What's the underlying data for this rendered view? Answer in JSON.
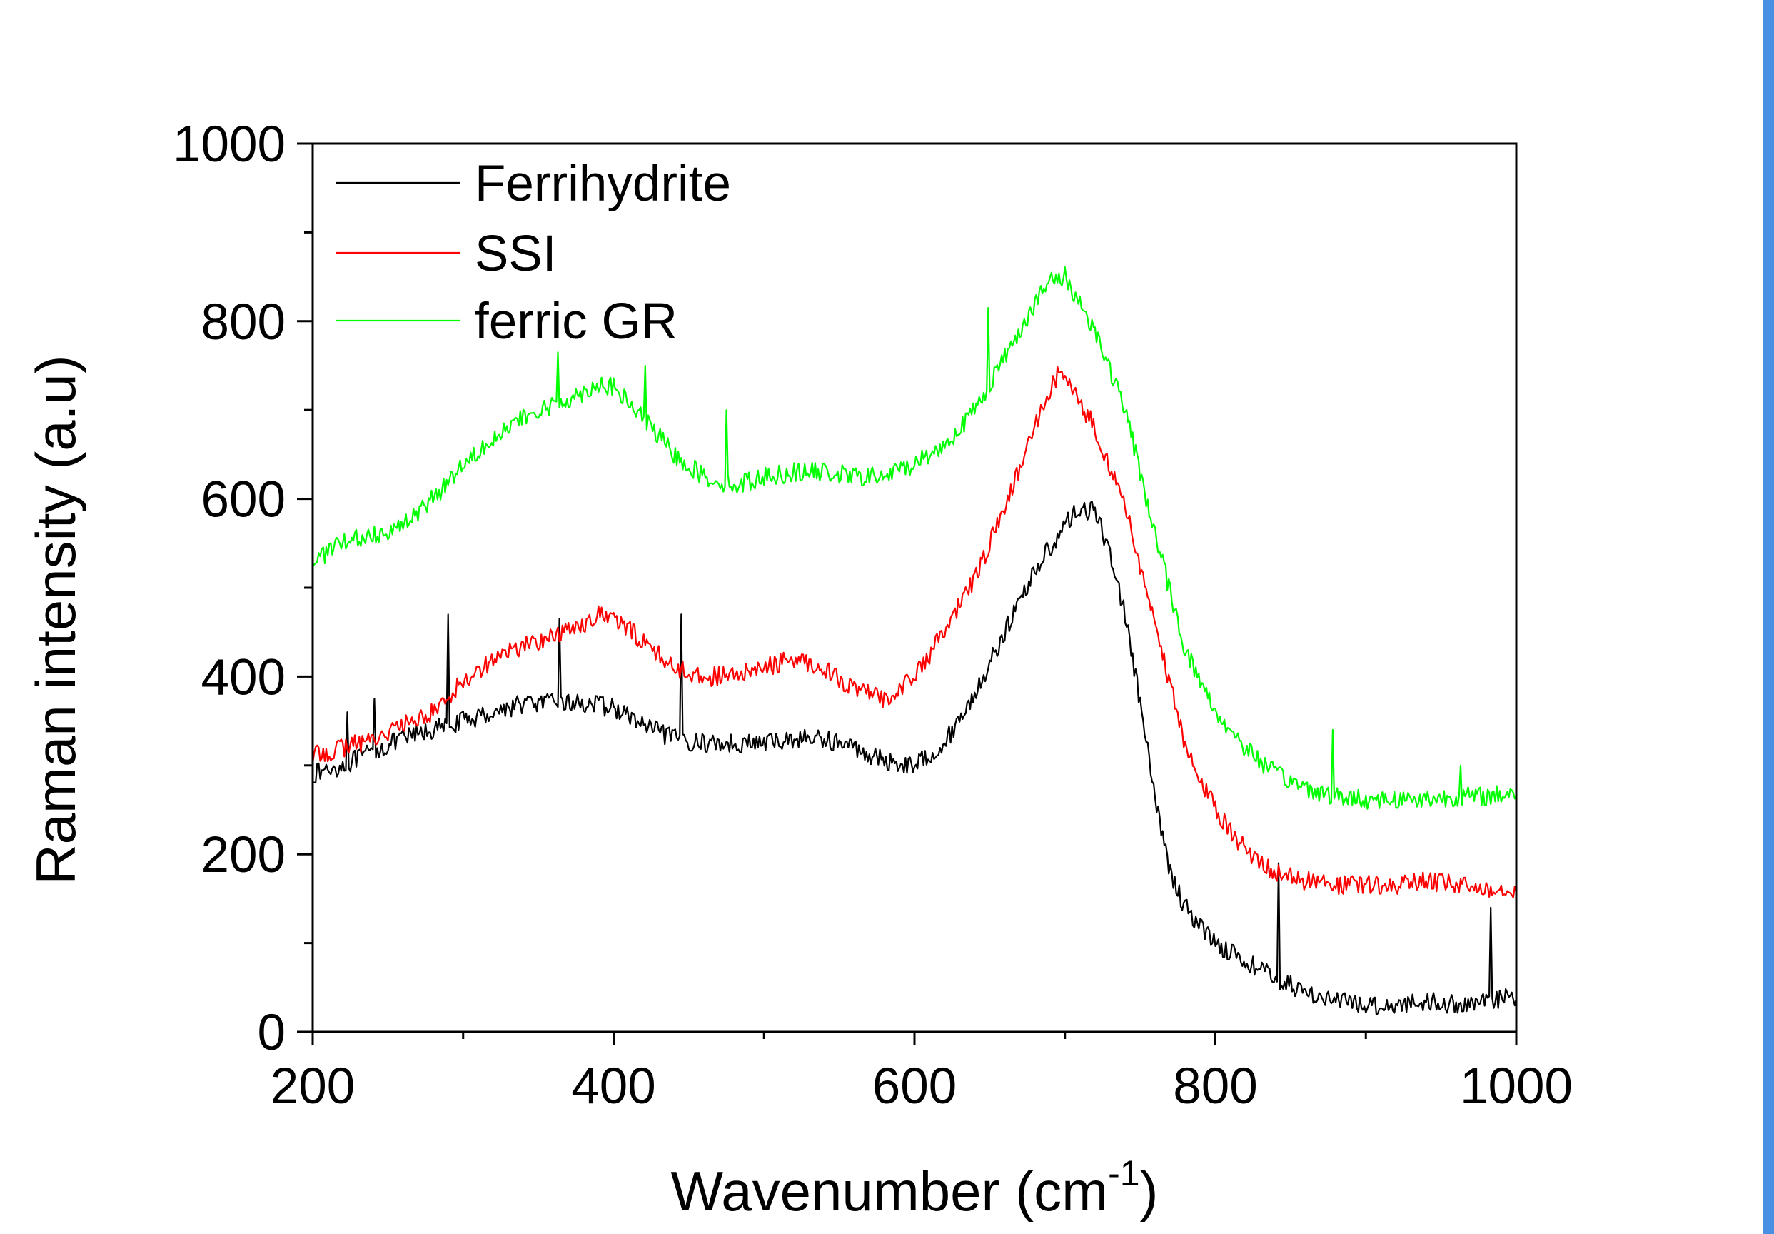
{
  "chart_data": {
    "type": "line",
    "xlabel": "Wavenumber (cm",
    "xlabel_superscript": "-1",
    "xlabel_suffix": ")",
    "ylabel": "Raman intensity (a.u)",
    "xlim": [
      200,
      1000
    ],
    "ylim": [
      0,
      1000
    ],
    "x_ticks": [
      200,
      400,
      600,
      800,
      1000
    ],
    "y_ticks": [
      0,
      200,
      400,
      600,
      800,
      1000
    ],
    "grid": false,
    "legend_position": "top-left",
    "series": [
      {
        "name": "Ferrihydrite",
        "color": "#000000",
        "points": [
          [
            200,
            290
          ],
          [
            220,
            300
          ],
          [
            240,
            315
          ],
          [
            260,
            330
          ],
          [
            280,
            340
          ],
          [
            300,
            350
          ],
          [
            320,
            360
          ],
          [
            340,
            370
          ],
          [
            360,
            370
          ],
          [
            380,
            370
          ],
          [
            400,
            365
          ],
          [
            420,
            345
          ],
          [
            440,
            330
          ],
          [
            460,
            325
          ],
          [
            480,
            325
          ],
          [
            500,
            325
          ],
          [
            520,
            330
          ],
          [
            540,
            330
          ],
          [
            560,
            320
          ],
          [
            580,
            305
          ],
          [
            600,
            300
          ],
          [
            620,
            325
          ],
          [
            640,
            380
          ],
          [
            660,
            450
          ],
          [
            680,
            520
          ],
          [
            700,
            570
          ],
          [
            710,
            590
          ],
          [
            720,
            585
          ],
          [
            730,
            540
          ],
          [
            740,
            470
          ],
          [
            750,
            370
          ],
          [
            760,
            260
          ],
          [
            770,
            180
          ],
          [
            780,
            140
          ],
          [
            800,
            100
          ],
          [
            820,
            80
          ],
          [
            840,
            60
          ],
          [
            860,
            45
          ],
          [
            880,
            35
          ],
          [
            900,
            30
          ],
          [
            920,
            30
          ],
          [
            940,
            35
          ],
          [
            960,
            30
          ],
          [
            980,
            35
          ],
          [
            1000,
            40
          ]
        ],
        "spikes": [
          [
            223,
            360
          ],
          [
            241,
            375
          ],
          [
            290,
            470
          ],
          [
            364,
            465
          ],
          [
            445,
            470
          ],
          [
            842,
            190
          ],
          [
            983,
            140
          ]
        ]
      },
      {
        "name": "SSI",
        "color": "#ff0000",
        "points": [
          [
            200,
            310
          ],
          [
            220,
            320
          ],
          [
            240,
            330
          ],
          [
            260,
            345
          ],
          [
            280,
            360
          ],
          [
            300,
            395
          ],
          [
            320,
            420
          ],
          [
            340,
            435
          ],
          [
            360,
            445
          ],
          [
            380,
            460
          ],
          [
            390,
            470
          ],
          [
            400,
            465
          ],
          [
            420,
            440
          ],
          [
            440,
            410
          ],
          [
            460,
            400
          ],
          [
            480,
            400
          ],
          [
            500,
            410
          ],
          [
            520,
            420
          ],
          [
            540,
            410
          ],
          [
            560,
            385
          ],
          [
            580,
            375
          ],
          [
            600,
            400
          ],
          [
            620,
            450
          ],
          [
            640,
            510
          ],
          [
            660,
            590
          ],
          [
            680,
            680
          ],
          [
            695,
            740
          ],
          [
            700,
            735
          ],
          [
            720,
            680
          ],
          [
            740,
            590
          ],
          [
            760,
            460
          ],
          [
            780,
            320
          ],
          [
            800,
            250
          ],
          [
            820,
            205
          ],
          [
            840,
            180
          ],
          [
            860,
            170
          ],
          [
            880,
            165
          ],
          [
            900,
            165
          ],
          [
            920,
            165
          ],
          [
            940,
            170
          ],
          [
            960,
            165
          ],
          [
            980,
            162
          ],
          [
            1000,
            162
          ]
        ],
        "spikes": []
      },
      {
        "name": "ferric GR",
        "color": "#00ff00",
        "points": [
          [
            200,
            530
          ],
          [
            220,
            550
          ],
          [
            240,
            560
          ],
          [
            260,
            570
          ],
          [
            280,
            600
          ],
          [
            300,
            640
          ],
          [
            320,
            670
          ],
          [
            340,
            690
          ],
          [
            360,
            705
          ],
          [
            380,
            720
          ],
          [
            390,
            730
          ],
          [
            400,
            725
          ],
          [
            420,
            690
          ],
          [
            440,
            650
          ],
          [
            460,
            625
          ],
          [
            480,
            615
          ],
          [
            500,
            625
          ],
          [
            520,
            630
          ],
          [
            540,
            630
          ],
          [
            560,
            625
          ],
          [
            580,
            625
          ],
          [
            600,
            640
          ],
          [
            620,
            660
          ],
          [
            640,
            700
          ],
          [
            660,
            760
          ],
          [
            680,
            820
          ],
          [
            690,
            845
          ],
          [
            700,
            850
          ],
          [
            720,
            790
          ],
          [
            740,
            700
          ],
          [
            760,
            560
          ],
          [
            780,
            430
          ],
          [
            800,
            360
          ],
          [
            820,
            320
          ],
          [
            840,
            290
          ],
          [
            860,
            275
          ],
          [
            880,
            265
          ],
          [
            900,
            262
          ],
          [
            920,
            262
          ],
          [
            940,
            262
          ],
          [
            960,
            265
          ],
          [
            980,
            265
          ],
          [
            1000,
            270
          ]
        ],
        "spikes": [
          [
            363,
            765
          ],
          [
            421,
            750
          ],
          [
            475,
            700
          ],
          [
            649,
            815
          ],
          [
            878,
            340
          ],
          [
            963,
            300
          ]
        ]
      }
    ]
  }
}
